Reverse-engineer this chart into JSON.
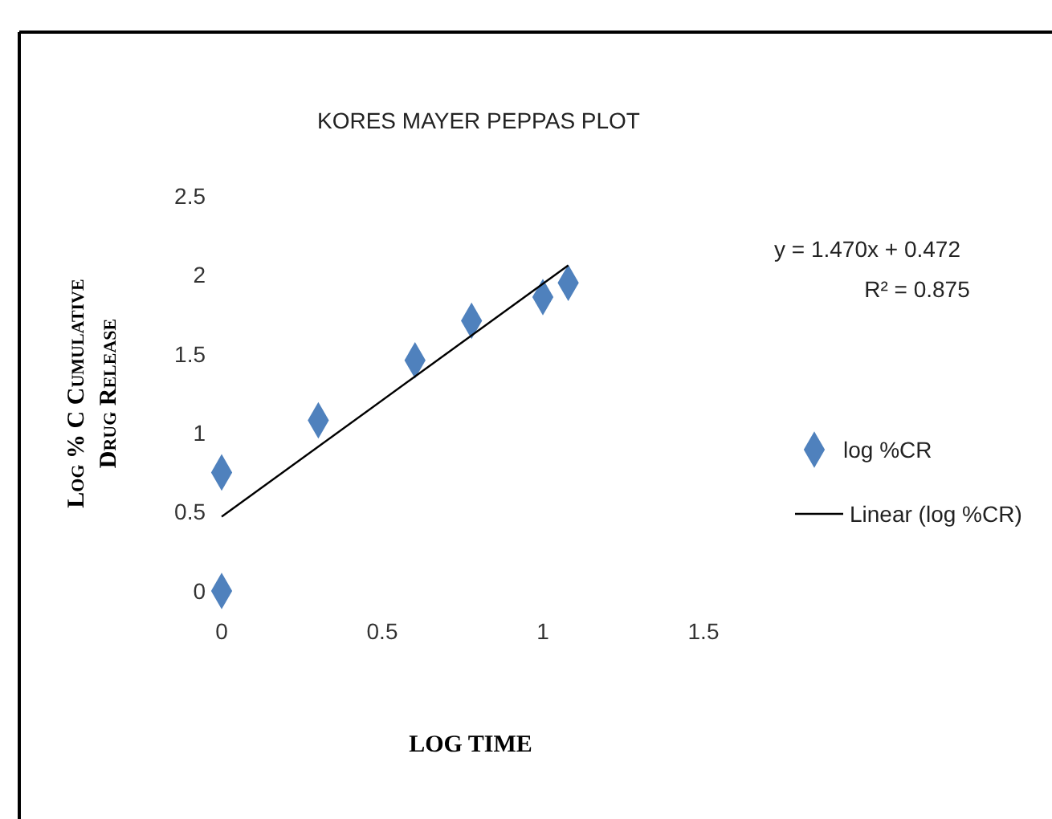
{
  "chart_data": {
    "type": "scatter",
    "title": "KORES MAYER  PEPPAS PLOT",
    "xlabel": "LOG TIME",
    "ylabel": "Log % C Cumulative Drug Release",
    "annotations": [
      "y = 1.470x + 0.472",
      "R² = 0.875"
    ],
    "series": [
      {
        "name": "log %CR",
        "marker": "diamond",
        "color": "#4f81bd",
        "x": [
          0,
          0,
          0.301,
          0.602,
          0.778,
          1.0,
          1.079
        ],
        "values": [
          0,
          0.75,
          1.08,
          1.46,
          1.71,
          1.86,
          1.95
        ]
      },
      {
        "name": "Linear (log %CR)",
        "type": "line",
        "marker": "none",
        "color": "#000000",
        "x": [
          0,
          1.079
        ],
        "values": [
          0.47,
          2.06
        ]
      }
    ],
    "xlim": [
      0,
      1.5
    ],
    "xticks": [
      0,
      0.5,
      1,
      1.5
    ],
    "ylim": [
      0,
      2.5
    ],
    "yticks": [
      0,
      0.5,
      1,
      1.5,
      2,
      2.5
    ],
    "grid": false,
    "legend": "right",
    "line_style": "solid"
  }
}
